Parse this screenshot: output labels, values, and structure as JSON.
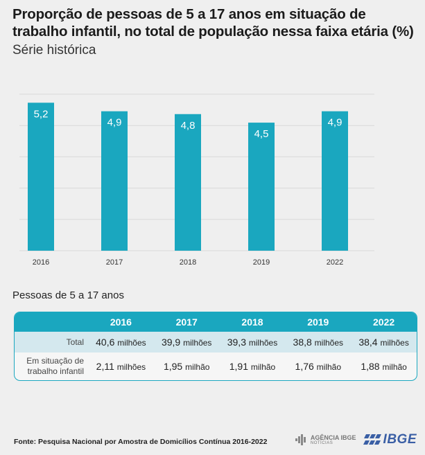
{
  "header": {
    "title": "Proporção de pessoas de 5 a 17 anos em situação de trabalho infantil, no total de população nessa faixa etária (%)",
    "subtitle": "Série histórica"
  },
  "chart_data": {
    "type": "bar",
    "categories": [
      "2016",
      "2017",
      "2018",
      "2019",
      "2022"
    ],
    "values": [
      5.2,
      4.9,
      4.8,
      4.5,
      4.9
    ],
    "value_labels": [
      "5,2",
      "4,9",
      "4,8",
      "4,5",
      "4,9"
    ],
    "title": "Proporção de pessoas de 5 a 17 anos em situação de trabalho infantil, no total de população nessa faixa etária (%)",
    "subtitle": "Série histórica",
    "ylim": [
      0,
      5.5
    ],
    "grid": true,
    "color": "#1aa7bf"
  },
  "table": {
    "title": "Pessoas de 5 a 17 anos",
    "years": [
      "2016",
      "2017",
      "2018",
      "2019",
      "2022"
    ],
    "rows": [
      {
        "label": "Total",
        "cells": [
          {
            "value": "40,6",
            "unit": "milhões"
          },
          {
            "value": "39,9",
            "unit": "milhões"
          },
          {
            "value": "39,3",
            "unit": "milhões"
          },
          {
            "value": "38,8",
            "unit": "milhões"
          },
          {
            "value": "38,4",
            "unit": "milhões"
          }
        ]
      },
      {
        "label_line1": "Em situação de",
        "label_line2": "trabalho infantil",
        "cells": [
          {
            "value": "2,11",
            "unit": "milhões"
          },
          {
            "value": "1,95",
            "unit": "milhão"
          },
          {
            "value": "1,91",
            "unit": "milhão"
          },
          {
            "value": "1,76",
            "unit": "milhão"
          },
          {
            "value": "1,88",
            "unit": "milhão"
          }
        ]
      }
    ]
  },
  "footer": {
    "source": "Fonte: Pesquisa Nacional por Amostra de Domicílios Contínua 2016-2022",
    "agencia_line1": "AGÊNCIA IBGE",
    "agencia_line2": "NOTÍCIAS",
    "ibge_logo": "IBGE"
  },
  "colors": {
    "accent": "#1aa7bf",
    "row_band": "#d4e8ee",
    "background": "#efefef"
  }
}
